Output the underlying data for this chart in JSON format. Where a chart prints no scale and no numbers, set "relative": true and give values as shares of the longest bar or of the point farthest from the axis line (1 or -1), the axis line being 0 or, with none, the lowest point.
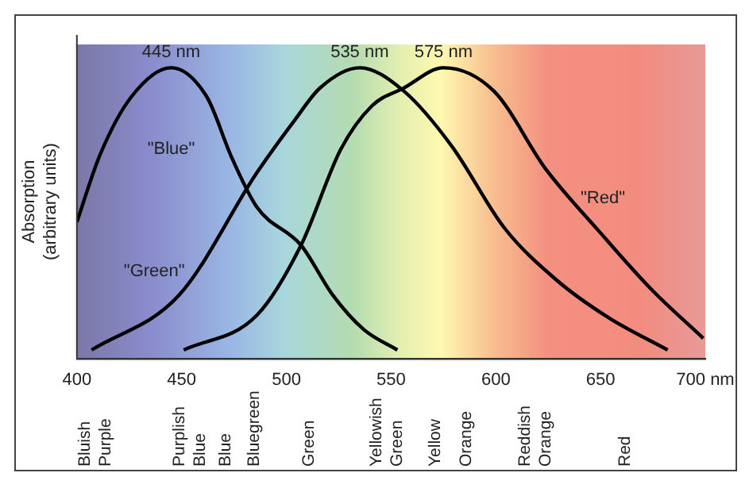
{
  "chart_data": {
    "type": "line",
    "relative": true,
    "xlabel": null,
    "ylabel": "Absorption (arbitrary units)",
    "xlim": [
      400,
      700
    ],
    "xticks": [
      400,
      450,
      500,
      550,
      600,
      650,
      {
        "value": 700,
        "label": "700 nm"
      }
    ],
    "grid": false,
    "legend": false,
    "marker": "none",
    "line_style": "solid",
    "series": [
      {
        "name": "\"Blue\"",
        "color": "#000000",
        "x": [
          400,
          411,
          426,
          445,
          462,
          474,
          486,
          507,
          522,
          537,
          553
        ],
        "values": [
          0.47,
          0.7,
          0.9,
          1,
          0.9,
          0.69,
          0.52,
          0.39,
          0.22,
          0.1,
          0.03
        ]
      },
      {
        "name": "\"Green\"",
        "color": "#000000",
        "x": [
          407,
          449,
          486,
          504,
          516,
          535,
          556,
          579,
          604,
          629,
          654,
          682
        ],
        "values": [
          0.03,
          0.22,
          0.64,
          0.82,
          0.93,
          1,
          0.92,
          0.73,
          0.45,
          0.27,
          0.14,
          0.03
        ]
      },
      {
        "name": "\"Red\"",
        "color": "#000000",
        "x": [
          451,
          486,
          507,
          526,
          541,
          556,
          575,
          599,
          624,
          649,
          674,
          699
        ],
        "values": [
          0.03,
          0.15,
          0.39,
          0.72,
          0.87,
          0.93,
          1,
          0.92,
          0.65,
          0.44,
          0.24,
          0.07
        ]
      }
    ],
    "annotations": [
      {
        "text": "445 nm",
        "x": 445,
        "y": 1
      },
      {
        "text": "535 nm",
        "x": 535,
        "y": 1
      },
      {
        "text": "575 nm",
        "x": 575,
        "y": 1
      },
      "Bluish Purple",
      "Purplish Blue",
      "Blue",
      "Bluegreen",
      "Green",
      "Yellowish Green",
      "Yellow",
      "Orange",
      "Reddish Orange",
      "Red"
    ]
  }
}
